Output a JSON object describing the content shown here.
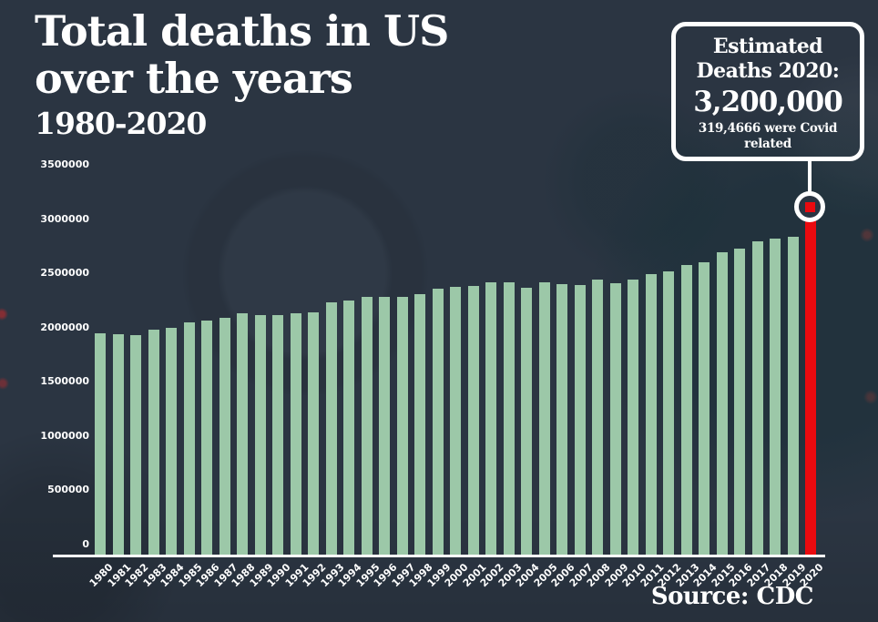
{
  "colors": {
    "background": "#2b3542",
    "text": "#ffffff",
    "bar_green": "#9cc8a8",
    "highlight_red": "#ea0a0f"
  },
  "title": {
    "line1": "Total deaths in US",
    "line2": "over the years",
    "line3": "1980-2020"
  },
  "callout": {
    "heading_line1": "Estimated",
    "heading_line2": "Deaths 2020:",
    "value": "3,200,000",
    "subtext": "319,4666 were Covid related"
  },
  "source": "Source: CDC",
  "chart_data": {
    "type": "bar",
    "title": "Total deaths in US over the years 1980-2020",
    "xlabel": "",
    "ylabel": "",
    "ylim": [
      0,
      3500000
    ],
    "yticks": [
      3500000,
      3000000,
      2500000,
      2000000,
      1500000,
      1000000,
      500000,
      0
    ],
    "grid": false,
    "legend": "none",
    "bar_color": "#9cc8a8",
    "highlight": {
      "category": "2020",
      "value": 3200000,
      "color": "#ea0a0f",
      "marker": "white-ring"
    },
    "categories": [
      "1980",
      "1981",
      "1982",
      "1983",
      "1984",
      "1985",
      "1986",
      "1987",
      "1988",
      "1989",
      "1990",
      "1991",
      "1992",
      "1993",
      "1994",
      "1995",
      "1996",
      "1997",
      "1998",
      "1999",
      "2000",
      "2001",
      "2002",
      "2003",
      "2004",
      "2005",
      "2006",
      "2007",
      "2008",
      "2009",
      "2010",
      "2011",
      "2012",
      "2013",
      "2014",
      "2015",
      "2016",
      "2017",
      "2018",
      "2019",
      "2020"
    ],
    "values": [
      1989841,
      1977981,
      1974797,
      2019201,
      2039369,
      2086440,
      2105361,
      2123323,
      2167999,
      2150466,
      2148463,
      2169518,
      2175613,
      2268553,
      2278994,
      2312132,
      2314690,
      2314245,
      2337256,
      2391399,
      2403351,
      2416425,
      2443387,
      2448288,
      2397615,
      2448017,
      2426264,
      2423712,
      2471984,
      2437163,
      2468435,
      2515458,
      2543279,
      2596993,
      2626418,
      2712630,
      2744248,
      2813503,
      2839205,
      2854838,
      3200000
    ]
  }
}
